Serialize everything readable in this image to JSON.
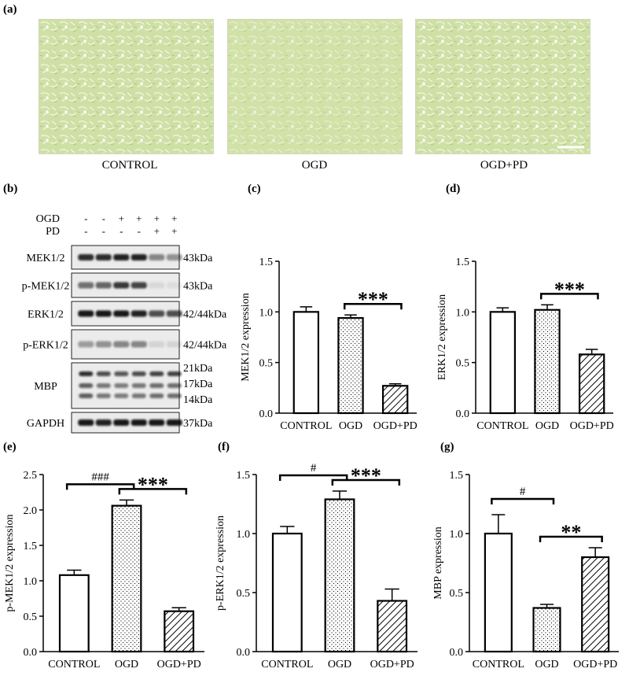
{
  "panel_labels": {
    "a": "(a)",
    "b": "(b)",
    "c": "(c)",
    "d": "(d)",
    "e": "(e)",
    "f": "(f)",
    "g": "(g)"
  },
  "micrographs": {
    "captions": [
      "CONTROL",
      "OGD",
      "OGD+PD"
    ]
  },
  "western_blot": {
    "treatments": [
      {
        "name": "OGD",
        "marks": [
          "-",
          "-",
          "+",
          "+",
          "+",
          "+"
        ]
      },
      {
        "name": "PD",
        "marks": [
          "-",
          "-",
          "-",
          "-",
          "+",
          "+"
        ]
      }
    ],
    "blots": [
      {
        "name": "MEK1/2",
        "sizes": [
          "43kDa"
        ],
        "intensity": [
          0.85,
          0.85,
          0.9,
          0.9,
          0.45,
          0.4
        ]
      },
      {
        "name": "p-MEK1/2",
        "sizes": [
          "43kDa"
        ],
        "intensity": [
          0.55,
          0.6,
          0.8,
          0.75,
          0.08,
          0.06
        ]
      },
      {
        "name": "ERK1/2",
        "sizes": [
          "42/44kDa"
        ],
        "intensity": [
          0.95,
          0.95,
          0.95,
          0.9,
          0.7,
          0.7
        ]
      },
      {
        "name": "p-ERK1/2",
        "sizes": [
          "42/44kDa"
        ],
        "intensity": [
          0.35,
          0.4,
          0.45,
          0.45,
          0.1,
          0.1
        ]
      },
      {
        "name": "MBP",
        "sizes": [
          "21kDa",
          "17kDa",
          "14kDa"
        ],
        "intensity": [
          0.9,
          0.75,
          0.7,
          0.75,
          0.8,
          0.8
        ]
      },
      {
        "name": "GAPDH",
        "sizes": [
          "37kDa"
        ],
        "intensity": [
          0.95,
          0.9,
          0.95,
          0.95,
          0.95,
          0.95
        ]
      }
    ]
  },
  "chart_data": [
    {
      "panel": "c",
      "type": "bar",
      "categories": [
        "CONTROL",
        "OGD",
        "OGD+PD"
      ],
      "values": [
        1.0,
        0.94,
        0.27
      ],
      "errors": [
        0.05,
        0.03,
        0.02
      ],
      "ylabel": "MEK1/2 expression",
      "ylim": [
        0,
        1.5
      ],
      "yticks": [
        "0.0",
        "0.5",
        "1.0",
        "1.5"
      ],
      "annotations": [
        {
          "from": 1,
          "to": 2,
          "label": "***"
        }
      ]
    },
    {
      "panel": "d",
      "type": "bar",
      "categories": [
        "CONTROL",
        "OGD",
        "OGD+PD"
      ],
      "values": [
        1.0,
        1.02,
        0.58
      ],
      "errors": [
        0.04,
        0.05,
        0.05
      ],
      "ylabel": "ERK1/2 expression",
      "ylim": [
        0,
        1.5
      ],
      "yticks": [
        "0.0",
        "0.5",
        "1.0",
        "1.5"
      ],
      "annotations": [
        {
          "from": 1,
          "to": 2,
          "label": "***"
        }
      ]
    },
    {
      "panel": "e",
      "type": "bar",
      "categories": [
        "CONTROL",
        "OGD",
        "OGD+PD"
      ],
      "values": [
        1.08,
        2.06,
        0.57
      ],
      "errors": [
        0.07,
        0.08,
        0.05
      ],
      "ylabel": "p-MEK1/2 expression",
      "ylim": [
        0,
        2.5
      ],
      "yticks": [
        "0.0",
        "0.5",
        "1.0",
        "1.5",
        "2.0",
        "2.5"
      ],
      "annotations": [
        {
          "from": 0,
          "to": 1,
          "label": "###"
        },
        {
          "from": 1,
          "to": 2,
          "label": "***"
        }
      ]
    },
    {
      "panel": "f",
      "type": "bar",
      "categories": [
        "CONTROL",
        "OGD",
        "OGD+PD"
      ],
      "values": [
        1.0,
        1.29,
        0.43
      ],
      "errors": [
        0.06,
        0.07,
        0.1
      ],
      "ylabel": "p-ERK1/2 expression",
      "ylim": [
        0,
        1.5
      ],
      "yticks": [
        "0.0",
        "0.5",
        "1.0",
        "1.5"
      ],
      "annotations": [
        {
          "from": 0,
          "to": 1,
          "label": "#"
        },
        {
          "from": 1,
          "to": 2,
          "label": "***"
        }
      ]
    },
    {
      "panel": "g",
      "type": "bar",
      "categories": [
        "CONTROL",
        "OGD",
        "OGD+PD"
      ],
      "values": [
        1.0,
        0.37,
        0.8
      ],
      "errors": [
        0.16,
        0.03,
        0.08
      ],
      "ylabel": "MBP expression",
      "ylim": [
        0,
        1.5
      ],
      "yticks": [
        "0.0",
        "0.5",
        "1.0",
        "1.5"
      ],
      "annotations": [
        {
          "from": 0,
          "to": 1,
          "label": "#"
        },
        {
          "from": 1,
          "to": 2,
          "label": "**"
        }
      ]
    }
  ]
}
